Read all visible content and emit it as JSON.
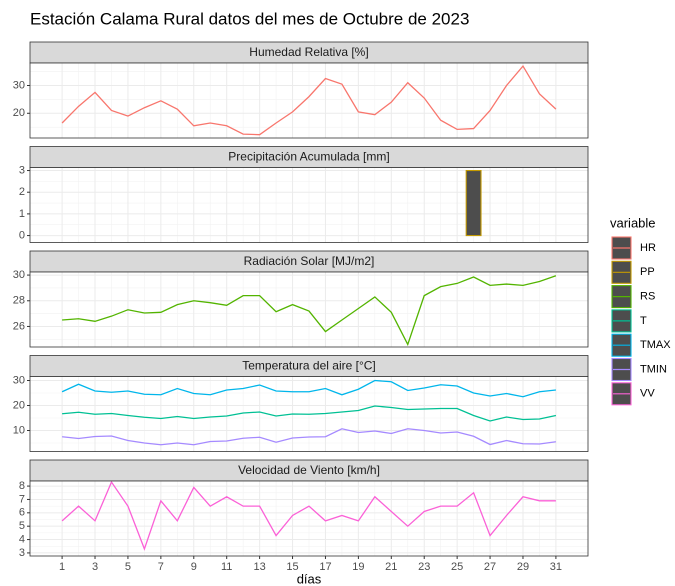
{
  "chart_data": {
    "type": "facet",
    "title": "Estación Calama Rural datos del mes de Octubre de 2023",
    "x_label": "días",
    "legend_title": "variable",
    "x": [
      1,
      2,
      3,
      4,
      5,
      6,
      7,
      8,
      9,
      10,
      11,
      12,
      13,
      14,
      15,
      16,
      17,
      18,
      19,
      20,
      21,
      22,
      23,
      24,
      25,
      26,
      27,
      28,
      29,
      30,
      31
    ],
    "xlim": [
      -0.95,
      32.95
    ],
    "xticks": [
      1,
      3,
      5,
      7,
      9,
      11,
      13,
      15,
      17,
      19,
      21,
      23,
      25,
      27,
      29,
      31
    ],
    "grid": true,
    "panels": [
      {
        "type": "line",
        "title": "Humedad Relativa [%]",
        "ylim": [
          11.1,
          38.1
        ],
        "yticks": [
          20,
          30
        ],
        "series": [
          {
            "name": "HR",
            "color": "#F8766D",
            "values": [
              16.5,
              22.5,
              27.5,
              21,
              19,
              22,
              24.5,
              21.5,
              15.5,
              16.5,
              15.5,
              12.5,
              12.3,
              16.5,
              20.5,
              26,
              32.5,
              30.5,
              20.5,
              19.5,
              24,
              31,
              25.5,
              17.5,
              14.2,
              14.5,
              21,
              30,
              37,
              27,
              21.5
            ]
          }
        ]
      },
      {
        "type": "bar",
        "title": "Precipitación Acumulada [mm]",
        "ylim": [
          -0.32,
          3.14
        ],
        "yticks": [
          0,
          1,
          2,
          3
        ],
        "series": [
          {
            "name": "PP",
            "color": "#C49A00",
            "values": [
              0,
              0,
              0,
              0,
              0,
              0,
              0,
              0,
              0,
              0,
              0,
              0,
              0,
              0,
              0,
              0,
              0,
              0,
              0,
              0,
              0,
              0,
              0,
              0,
              0,
              3,
              0,
              0,
              0,
              0,
              0
            ]
          }
        ]
      },
      {
        "type": "line",
        "title": "Radiación Solar [MJ/m2]",
        "ylim": [
          24.4,
          30.24
        ],
        "yticks": [
          26,
          28,
          30
        ],
        "series": [
          {
            "name": "RS",
            "color": "#53B400",
            "values": [
              26.5,
              26.6,
              26.4,
              26.8,
              27.3,
              27.05,
              27.1,
              27.7,
              28,
              27.85,
              27.65,
              28.4,
              28.4,
              27.15,
              27.7,
              27.2,
              25.6,
              26.5,
              27.4,
              28.3,
              27.1,
              24.6,
              28.4,
              29.1,
              29.35,
              29.85,
              29.2,
              29.3,
              29.2,
              29.5,
              29.95
            ]
          }
        ]
      },
      {
        "type": "line",
        "title": "Temperatura del aire [°C]",
        "ylim": [
          1.6,
          31.6
        ],
        "yticks": [
          10,
          20,
          30
        ],
        "series": [
          {
            "name": "T",
            "color": "#00C094",
            "values": [
              16.7,
              17.3,
              16.5,
              16.8,
              16,
              15.3,
              14.8,
              15.6,
              14.8,
              15.4,
              15.8,
              17,
              17.4,
              15.8,
              16.6,
              16.5,
              16.8,
              17.4,
              18,
              19.8,
              19.2,
              18.4,
              18.6,
              18.8,
              18.8,
              16,
              13.8,
              15.4,
              14.4,
              14.6,
              16
            ]
          },
          {
            "name": "TMAX",
            "color": "#00B6EB",
            "values": [
              25.5,
              28.5,
              25.8,
              25.3,
              25.8,
              24.5,
              24.3,
              26.8,
              24.8,
              24.3,
              26.2,
              26.8,
              28.2,
              25.8,
              25.5,
              25.5,
              26.8,
              24.3,
              26.5,
              30,
              29.5,
              26,
              27,
              28.3,
              27.8,
              25,
              23.8,
              24.8,
              23.5,
              25.5,
              26.2
            ]
          },
          {
            "name": "TMIN",
            "color": "#A58AFF",
            "values": [
              7.5,
              6.8,
              7.6,
              7.8,
              6,
              5,
              4.3,
              5,
              4.3,
              5.6,
              5.8,
              6.9,
              7.3,
              5.3,
              7,
              7.4,
              7.5,
              10.7,
              9.2,
              9.8,
              8.8,
              10.7,
              10,
              9,
              9.4,
              7.7,
              4.4,
              6,
              4.7,
              4.6,
              5.5
            ]
          }
        ]
      },
      {
        "type": "line",
        "title": "Velocidad de Viento [km/h]",
        "ylim": [
          2.77,
          8.38
        ],
        "yticks": [
          3,
          4,
          5,
          6,
          7,
          8
        ],
        "series": [
          {
            "name": "VV",
            "color": "#FB61D7",
            "values": [
              5.4,
              6.5,
              5.4,
              8.3,
              6.5,
              3.3,
              6.9,
              5.4,
              7.9,
              6.5,
              7.2,
              6.5,
              6.5,
              4.3,
              5.8,
              6.5,
              5.4,
              5.8,
              5.4,
              7.2,
              6.1,
              5,
              6.1,
              6.5,
              6.5,
              7.5,
              4.3,
              5.8,
              7.2,
              6.9,
              6.9
            ]
          }
        ]
      }
    ]
  }
}
